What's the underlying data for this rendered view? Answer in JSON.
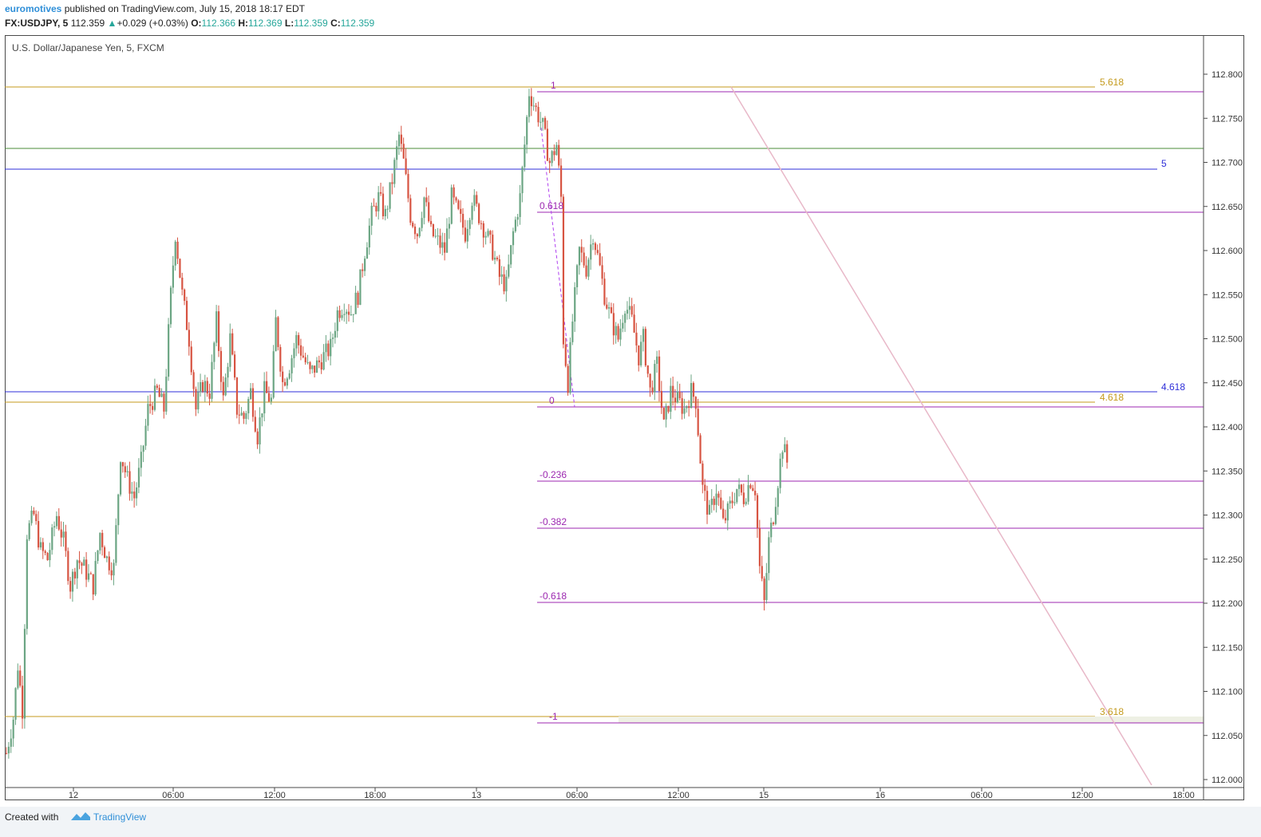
{
  "header": {
    "author": "euromotives",
    "published_text": "published on TradingView.com, July 15, 2018 18:17 EDT",
    "symbol": "FX:USDJPY, 5",
    "last_price": "112.359",
    "change": "+0.029 (+0.03%)",
    "open_label": "O:",
    "open": "112.366",
    "high_label": "H:",
    "high": "112.369",
    "low_label": "L:",
    "low": "112.359",
    "close_label": "C:",
    "close": "112.359"
  },
  "footer": {
    "created_with": "Created with",
    "brand": "TradingView"
  },
  "colors": {
    "up": "#6ba583",
    "down": "#d75442",
    "fib": "#9c27b0",
    "gold": "#c49a1c",
    "blue": "#2f2fd8",
    "green": "#4a8c3a",
    "trend": "#e8b8c8"
  },
  "chart_data": {
    "type": "candlestick",
    "title": "U.S. Dollar/Japanese Yen, 5, FXCM",
    "ylim": [
      112.0,
      112.8
    ],
    "y_ticks": [
      "112.800",
      "112.750",
      "112.700",
      "112.650",
      "112.600",
      "112.550",
      "112.500",
      "112.450",
      "112.400",
      "112.350",
      "112.300",
      "112.250",
      "112.200",
      "112.150",
      "112.100",
      "112.050",
      "112.000"
    ],
    "x_ticks": [
      "12",
      "06:00",
      "12:00",
      "18:00",
      "13",
      "06:00",
      "12:00",
      "15",
      "16",
      "06:00",
      "12:00",
      "18:00"
    ],
    "price_path": [
      [
        0,
        112.03
      ],
      [
        3,
        112.07
      ],
      [
        5,
        112.13
      ],
      [
        7,
        112.08
      ],
      [
        9,
        112.28
      ],
      [
        12,
        112.3
      ],
      [
        15,
        112.26
      ],
      [
        18,
        112.25
      ],
      [
        22,
        112.3
      ],
      [
        25,
        112.27
      ],
      [
        28,
        112.22
      ],
      [
        31,
        112.25
      ],
      [
        34,
        112.24
      ],
      [
        38,
        112.22
      ],
      [
        41,
        112.28
      ],
      [
        44,
        112.25
      ],
      [
        47,
        112.24
      ],
      [
        50,
        112.37
      ],
      [
        53,
        112.34
      ],
      [
        56,
        112.32
      ],
      [
        59,
        112.36
      ],
      [
        62,
        112.42
      ],
      [
        66,
        112.44
      ],
      [
        69,
        112.42
      ],
      [
        72,
        112.55
      ],
      [
        74,
        112.62
      ],
      [
        77,
        112.55
      ],
      [
        80,
        112.5
      ],
      [
        83,
        112.42
      ],
      [
        86,
        112.45
      ],
      [
        89,
        112.44
      ],
      [
        92,
        112.52
      ],
      [
        95,
        112.43
      ],
      [
        98,
        112.5
      ],
      [
        101,
        112.42
      ],
      [
        104,
        112.41
      ],
      [
        107,
        112.44
      ],
      [
        110,
        112.39
      ],
      [
        113,
        112.44
      ],
      [
        116,
        112.43
      ],
      [
        118,
        112.52
      ],
      [
        121,
        112.45
      ],
      [
        124,
        112.47
      ],
      [
        127,
        112.5
      ],
      [
        130,
        112.48
      ],
      [
        133,
        112.46
      ],
      [
        136,
        112.47
      ],
      [
        139,
        112.48
      ],
      [
        142,
        112.49
      ],
      [
        145,
        112.53
      ],
      [
        148,
        112.54
      ],
      [
        151,
        112.53
      ],
      [
        154,
        112.55
      ],
      [
        157,
        112.6
      ],
      [
        160,
        112.64
      ],
      [
        163,
        112.66
      ],
      [
        166,
        112.64
      ],
      [
        169,
        112.68
      ],
      [
        172,
        112.73
      ],
      [
        174,
        112.7
      ],
      [
        177,
        112.64
      ],
      [
        180,
        112.62
      ],
      [
        183,
        112.66
      ],
      [
        186,
        112.62
      ],
      [
        189,
        112.61
      ],
      [
        192,
        112.6
      ],
      [
        195,
        112.66
      ],
      [
        198,
        112.64
      ],
      [
        201,
        112.62
      ],
      [
        204,
        112.66
      ],
      [
        207,
        112.64
      ],
      [
        210,
        112.62
      ],
      [
        213,
        112.6
      ],
      [
        216,
        112.57
      ],
      [
        219,
        112.56
      ],
      [
        222,
        112.62
      ],
      [
        225,
        112.66
      ],
      [
        227,
        112.72
      ],
      [
        229,
        112.78
      ],
      [
        232,
        112.76
      ],
      [
        235,
        112.74
      ],
      [
        238,
        112.7
      ],
      [
        241,
        112.72
      ],
      [
        243,
        112.66
      ],
      [
        244,
        112.5
      ],
      [
        246,
        112.45
      ],
      [
        248,
        112.52
      ],
      [
        251,
        112.6
      ],
      [
        254,
        112.58
      ],
      [
        257,
        112.62
      ],
      [
        260,
        112.58
      ],
      [
        262,
        112.55
      ],
      [
        265,
        112.52
      ],
      [
        268,
        112.5
      ],
      [
        271,
        112.54
      ],
      [
        274,
        112.52
      ],
      [
        277,
        112.48
      ],
      [
        279,
        112.5
      ],
      [
        282,
        112.44
      ],
      [
        285,
        112.47
      ],
      [
        288,
        112.4
      ],
      [
        291,
        112.44
      ],
      [
        294,
        112.43
      ],
      [
        297,
        112.42
      ],
      [
        300,
        112.44
      ],
      [
        302,
        112.43
      ],
      [
        305,
        112.33
      ],
      [
        308,
        112.3
      ],
      [
        311,
        112.33
      ],
      [
        314,
        112.29
      ],
      [
        317,
        112.31
      ],
      [
        320,
        112.33
      ],
      [
        323,
        112.32
      ],
      [
        326,
        112.34
      ],
      [
        328,
        112.33
      ],
      [
        330,
        112.24
      ],
      [
        332,
        112.2
      ],
      [
        334,
        112.27
      ],
      [
        336,
        112.3
      ],
      [
        338,
        112.34
      ],
      [
        340,
        112.38
      ],
      [
        342,
        112.36
      ]
    ]
  },
  "levels": {
    "gold_5618": "5.618",
    "blue_5": "5",
    "blue_4618": "4.618",
    "gold_4618": "4.618",
    "gold_3618": "3.618",
    "fib_1": "1",
    "fib_0618": "0.618",
    "fib_0": "0",
    "fib_m0236": "-0.236",
    "fib_m0382": "-0.382",
    "fib_m0618": "-0.618",
    "fib_m1": "-1"
  }
}
